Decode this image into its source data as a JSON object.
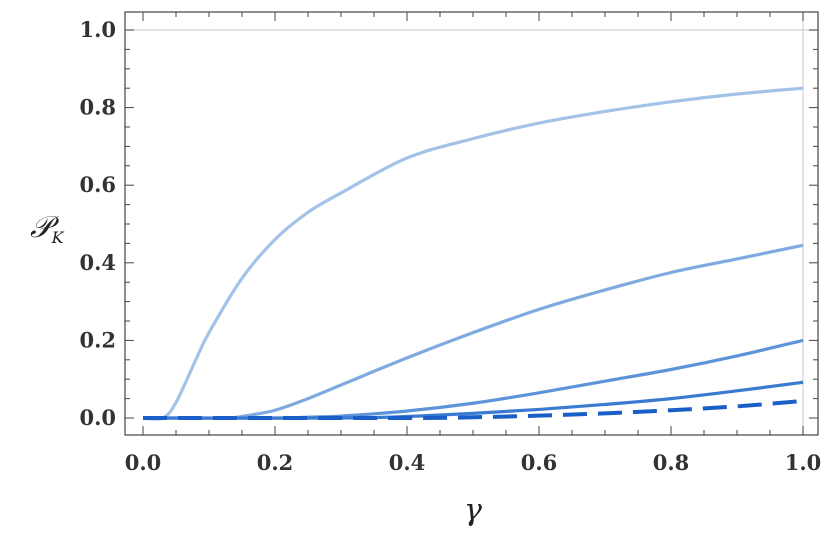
{
  "chart_data": {
    "type": "line",
    "title": "",
    "xlabel": "γ",
    "ylabel": {
      "main": "𝒫",
      "sub": "K"
    },
    "xlim": [
      0,
      1
    ],
    "ylim": [
      0,
      1
    ],
    "x_ticks": [
      "0.0",
      "0.2",
      "0.4",
      "0.6",
      "0.8",
      "1.0"
    ],
    "y_ticks": [
      "0.0",
      "0.2",
      "0.4",
      "0.6",
      "0.8",
      "1.0"
    ],
    "grid": "y=1.0 and x=1.0 reference lines",
    "series": [
      {
        "color": "#a3c2e8",
        "dash": false,
        "x": [
          0,
          0.03,
          0.05,
          0.08,
          0.1,
          0.15,
          0.2,
          0.25,
          0.3,
          0.4,
          0.5,
          0.6,
          0.7,
          0.8,
          0.9,
          1.0
        ],
        "y": [
          0,
          0,
          0.04,
          0.15,
          0.22,
          0.36,
          0.46,
          0.53,
          0.58,
          0.67,
          0.72,
          0.76,
          0.79,
          0.815,
          0.835,
          0.85
        ]
      },
      {
        "color": "#7faadf",
        "dash": false,
        "x": [
          0,
          0.1,
          0.13,
          0.15,
          0.2,
          0.25,
          0.3,
          0.4,
          0.5,
          0.6,
          0.7,
          0.8,
          0.9,
          1.0
        ],
        "y": [
          0,
          0,
          0,
          0.004,
          0.02,
          0.05,
          0.085,
          0.155,
          0.22,
          0.28,
          0.33,
          0.375,
          0.41,
          0.445
        ]
      },
      {
        "color": "#5d93d8",
        "dash": false,
        "x": [
          0,
          0.2,
          0.25,
          0.3,
          0.4,
          0.5,
          0.6,
          0.7,
          0.8,
          0.9,
          1.0
        ],
        "y": [
          0,
          0,
          0.002,
          0.005,
          0.018,
          0.038,
          0.065,
          0.095,
          0.125,
          0.16,
          0.2
        ]
      },
      {
        "color": "#3a7ad1",
        "dash": false,
        "x": [
          0,
          0.3,
          0.4,
          0.5,
          0.6,
          0.7,
          0.8,
          0.9,
          1.0
        ],
        "y": [
          0,
          0,
          0.004,
          0.012,
          0.022,
          0.035,
          0.05,
          0.07,
          0.092
        ]
      },
      {
        "color": "#1a5ec7",
        "dash": true,
        "x": [
          0,
          0.4,
          0.5,
          0.6,
          0.7,
          0.8,
          0.9,
          1.0
        ],
        "y": [
          0,
          0,
          0.002,
          0.006,
          0.012,
          0.02,
          0.03,
          0.044
        ]
      }
    ]
  }
}
